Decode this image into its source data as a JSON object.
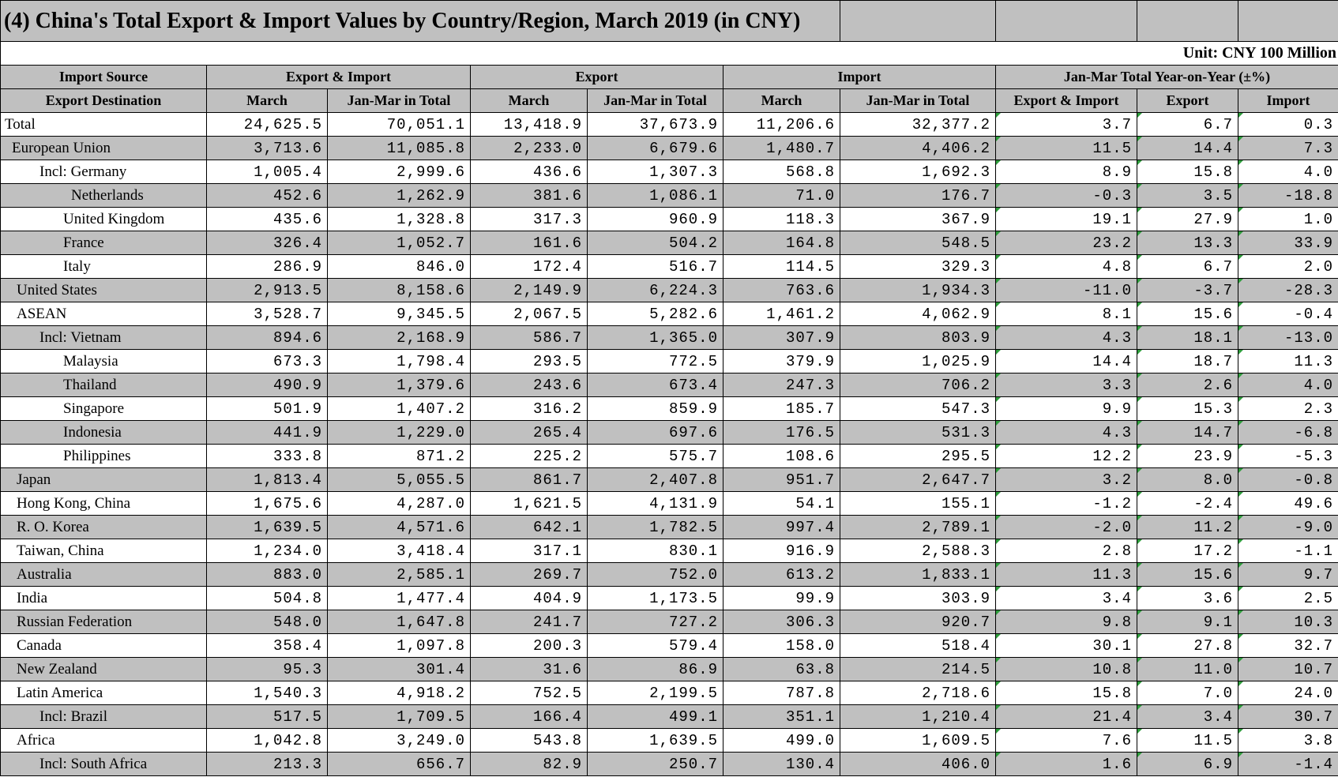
{
  "title": "(4) China's Total Export & Import Values by Country/Region, March 2019 (in CNY)",
  "unit": "Unit: CNY 100 Million",
  "header": {
    "row1": [
      "Import Source",
      "Export & Import",
      "Export",
      "Import",
      "Jan-Mar Total Year-on-Year (±%)"
    ],
    "row2": [
      "Export Destination",
      "March",
      "Jan-Mar in Total",
      "March",
      "Jan-Mar in Total",
      "March",
      "Jan-Mar in Total",
      "Export & Import",
      "Export",
      "Import"
    ]
  },
  "table": {
    "rows": [
      [
        "Total",
        "24,625.5",
        "70,051.1",
        "13,418.9",
        "37,673.9",
        "11,206.6",
        "32,377.2",
        "3.7",
        "6.7",
        "0.3"
      ],
      [
        "European Union",
        "3,713.6",
        "11,085.8",
        "2,233.0",
        "6,679.6",
        "1,480.7",
        "4,406.2",
        "11.5",
        "14.4",
        "7.3"
      ],
      [
        "Incl: Germany",
        "1,005.4",
        "2,999.6",
        "436.6",
        "1,307.3",
        "568.8",
        "1,692.3",
        "8.9",
        "15.8",
        "4.0"
      ],
      [
        "Netherlands",
        "452.6",
        "1,262.9",
        "381.6",
        "1,086.1",
        "71.0",
        "176.7",
        "-0.3",
        "3.5",
        "-18.8"
      ],
      [
        "United Kingdom",
        "435.6",
        "1,328.8",
        "317.3",
        "960.9",
        "118.3",
        "367.9",
        "19.1",
        "27.9",
        "1.0"
      ],
      [
        "France",
        "326.4",
        "1,052.7",
        "161.6",
        "504.2",
        "164.8",
        "548.5",
        "23.2",
        "13.3",
        "33.9"
      ],
      [
        "Italy",
        "286.9",
        "846.0",
        "172.4",
        "516.7",
        "114.5",
        "329.3",
        "4.8",
        "6.7",
        "2.0"
      ],
      [
        "United States",
        "2,913.5",
        "8,158.6",
        "2,149.9",
        "6,224.3",
        "763.6",
        "1,934.3",
        "-11.0",
        "-3.7",
        "-28.3"
      ],
      [
        "ASEAN",
        "3,528.7",
        "9,345.5",
        "2,067.5",
        "5,282.6",
        "1,461.2",
        "4,062.9",
        "8.1",
        "15.6",
        "-0.4"
      ],
      [
        "Incl: Vietnam",
        "894.6",
        "2,168.9",
        "586.7",
        "1,365.0",
        "307.9",
        "803.9",
        "4.3",
        "18.1",
        "-13.0"
      ],
      [
        "Malaysia",
        "673.3",
        "1,798.4",
        "293.5",
        "772.5",
        "379.9",
        "1,025.9",
        "14.4",
        "18.7",
        "11.3"
      ],
      [
        "Thailand",
        "490.9",
        "1,379.6",
        "243.6",
        "673.4",
        "247.3",
        "706.2",
        "3.3",
        "2.6",
        "4.0"
      ],
      [
        "Singapore",
        "501.9",
        "1,407.2",
        "316.2",
        "859.9",
        "185.7",
        "547.3",
        "9.9",
        "15.3",
        "2.3"
      ],
      [
        "Indonesia",
        "441.9",
        "1,229.0",
        "265.4",
        "697.6",
        "176.5",
        "531.3",
        "4.3",
        "14.7",
        "-6.8"
      ],
      [
        "Philippines",
        "333.8",
        "871.2",
        "225.2",
        "575.7",
        "108.6",
        "295.5",
        "12.2",
        "23.9",
        "-5.3"
      ],
      [
        "Japan",
        "1,813.4",
        "5,055.5",
        "861.7",
        "2,407.8",
        "951.7",
        "2,647.7",
        "3.2",
        "8.0",
        "-0.8"
      ],
      [
        "Hong Kong, China",
        "1,675.6",
        "4,287.0",
        "1,621.5",
        "4,131.9",
        "54.1",
        "155.1",
        "-1.2",
        "-2.4",
        "49.6"
      ],
      [
        "R. O. Korea",
        "1,639.5",
        "4,571.6",
        "642.1",
        "1,782.5",
        "997.4",
        "2,789.1",
        "-2.0",
        "11.2",
        "-9.0"
      ],
      [
        "Taiwan, China",
        "1,234.0",
        "3,418.4",
        "317.1",
        "830.1",
        "916.9",
        "2,588.3",
        "2.8",
        "17.2",
        "-1.1"
      ],
      [
        "Australia",
        "883.0",
        "2,585.1",
        "269.7",
        "752.0",
        "613.2",
        "1,833.1",
        "11.3",
        "15.6",
        "9.7"
      ],
      [
        "India",
        "504.8",
        "1,477.4",
        "404.9",
        "1,173.5",
        "99.9",
        "303.9",
        "3.4",
        "3.6",
        "2.5"
      ],
      [
        "Russian Federation",
        "548.0",
        "1,647.8",
        "241.7",
        "727.2",
        "306.3",
        "920.7",
        "9.8",
        "9.1",
        "10.3"
      ],
      [
        "Canada",
        "358.4",
        "1,097.8",
        "200.3",
        "579.4",
        "158.0",
        "518.4",
        "30.1",
        "27.8",
        "32.7"
      ],
      [
        "New Zealand",
        "95.3",
        "301.4",
        "31.6",
        "86.9",
        "63.8",
        "214.5",
        "10.8",
        "11.0",
        "10.7"
      ],
      [
        "Latin America",
        "1,540.3",
        "4,918.2",
        "752.5",
        "2,199.5",
        "787.8",
        "2,718.6",
        "15.8",
        "7.0",
        "24.0"
      ],
      [
        "Incl: Brazil",
        "517.5",
        "1,709.5",
        "166.4",
        "499.1",
        "351.1",
        "1,210.4",
        "21.4",
        "3.4",
        "30.7"
      ],
      [
        "Africa",
        "1,042.8",
        "3,249.0",
        "543.8",
        "1,639.5",
        "499.0",
        "1,609.5",
        "7.6",
        "11.5",
        "3.8"
      ],
      [
        "Incl: South Africa",
        "213.3",
        "656.7",
        "82.9",
        "250.7",
        "130.4",
        "406.0",
        "1.6",
        "6.9",
        "-1.4"
      ]
    ]
  }
}
